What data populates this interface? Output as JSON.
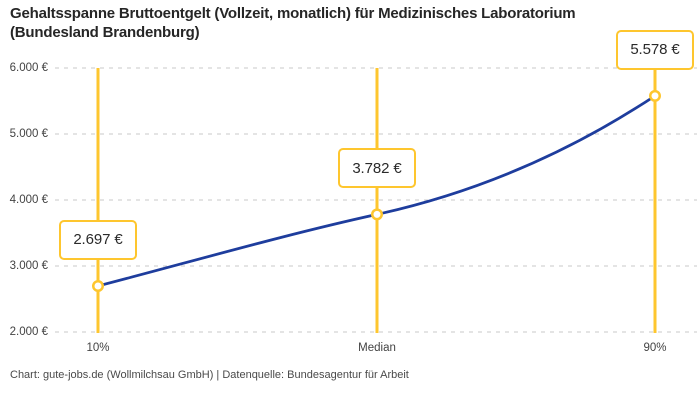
{
  "title_line1": "Gehaltsspanne Bruttoentgelt (Vollzeit, monatlich) für Medizinisches Laboratorium",
  "title_line2": "(Bundesland Brandenburg)",
  "footer": "Chart: gute-jobs.de (Wollmilchsau GmbH) | Datenquelle: Bundesagentur für Arbeit",
  "colors": {
    "accent_yellow": "#FEC62E",
    "line_blue": "#1E3D9D",
    "grid_gray": "#C9C9C9",
    "title_text": "#262626",
    "tick_text": "#434343",
    "point_fill": "#FFFFFF"
  },
  "chart_data": {
    "type": "line",
    "title": "Gehaltsspanne Bruttoentgelt (Vollzeit, monatlich) für Medizinisches Laboratorium (Bundesland Brandenburg)",
    "categories": [
      "10%",
      "Median",
      "90%"
    ],
    "values": [
      2697,
      3782,
      5578
    ],
    "value_labels": [
      "2.697 €",
      "3.782 €",
      "5.578 €"
    ],
    "series": [
      {
        "name": "Bruttoentgelt (Vollzeit, monatlich)",
        "values": [
          2697,
          3782,
          5578
        ]
      }
    ],
    "y_ticks": [
      2000,
      3000,
      4000,
      5000,
      6000
    ],
    "y_tick_labels": [
      "2.000 €",
      "3.000 €",
      "4.000 €",
      "5.000 €",
      "6.000 €"
    ],
    "ylim": [
      2000,
      6000
    ],
    "xlabel": "",
    "ylabel": "",
    "grid": "horizontal-dashed",
    "legend": "none",
    "marker_style": "vertical-yellow-lines-with-value-callouts"
  }
}
